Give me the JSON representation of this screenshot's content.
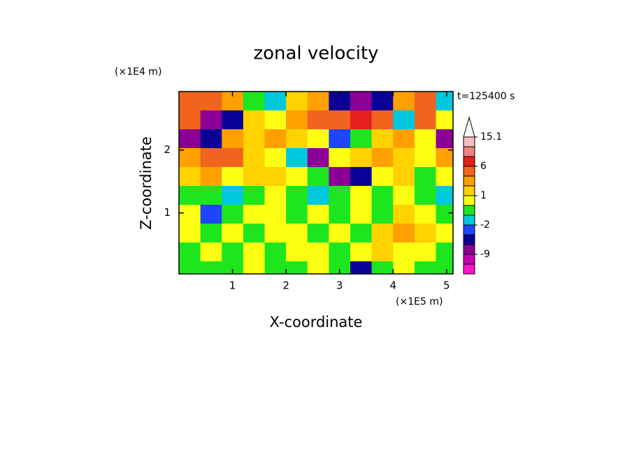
{
  "chart_data": {
    "type": "contour",
    "title": "zonal velocity",
    "annotation": "t=125400 s",
    "x_label": "X-coordinate",
    "y_label": "Z-coordinate",
    "x_unit": "(×1E5 m)",
    "y_unit": "(×1E4 m)",
    "xlim": [
      0,
      5.12
    ],
    "ylim": [
      0.03,
      2.93
    ],
    "xticks": [
      1,
      2,
      3,
      4,
      5
    ],
    "yticks": [
      1,
      2
    ],
    "x": [
      0.2,
      0.6,
      1.0,
      1.4,
      1.8,
      2.2,
      2.6,
      3.0,
      3.4,
      3.8,
      4.2,
      4.6,
      5.0
    ],
    "z": [
      2.78,
      2.48,
      2.18,
      1.88,
      1.58,
      1.28,
      0.98,
      0.68,
      0.38,
      0.08
    ],
    "z_values": [
      [
        5,
        4,
        2,
        -1,
        -2,
        1,
        2,
        -4,
        -7,
        -6,
        2,
        4,
        -2
      ],
      [
        4,
        -7,
        -5,
        1,
        0,
        2,
        4,
        5,
        6,
        3,
        -2,
        3,
        0
      ],
      [
        -7,
        -5,
        2,
        1,
        2,
        1,
        0,
        -3,
        -1,
        1,
        2,
        0,
        -7
      ],
      [
        2,
        4,
        3,
        1,
        0,
        -2,
        -7,
        0,
        1,
        2,
        1,
        0,
        2
      ],
      [
        1,
        2,
        0,
        1,
        1,
        0,
        -1,
        -7,
        -5,
        0,
        1,
        -1,
        0
      ],
      [
        -1,
        -1,
        -2,
        -1,
        0,
        -1,
        -2,
        -1,
        0,
        -1,
        0,
        -1,
        -2
      ],
      [
        0,
        -3,
        -1,
        0,
        0,
        -1,
        0,
        -1,
        0,
        -1,
        1,
        0,
        -1
      ],
      [
        0,
        -1,
        0,
        -1,
        0,
        0,
        -1,
        0,
        -1,
        1,
        2,
        1,
        0
      ],
      [
        -1,
        0,
        -1,
        0,
        -1,
        0,
        0,
        -1,
        0,
        1,
        0,
        0,
        -1
      ],
      [
        -1,
        -1,
        -1,
        0,
        -1,
        -1,
        0,
        -1,
        -4,
        -1,
        0,
        -1,
        -1
      ]
    ],
    "levels": [
      -15,
      -12,
      -9,
      -6,
      -3,
      -2,
      -1,
      0,
      1,
      2,
      3,
      6,
      9,
      12,
      15.1
    ],
    "colors": [
      "#ff14c8",
      "#c800b4",
      "#8c0096",
      "#0a0096",
      "#1e46ff",
      "#00c8dc",
      "#1ee61e",
      "#ffff14",
      "#ffd200",
      "#ffa000",
      "#f0641e",
      "#e61e1e",
      "#f08282",
      "#f5bebe"
    ],
    "colorbar_ticks": [
      15.1,
      6,
      1,
      -2,
      -9
    ]
  }
}
